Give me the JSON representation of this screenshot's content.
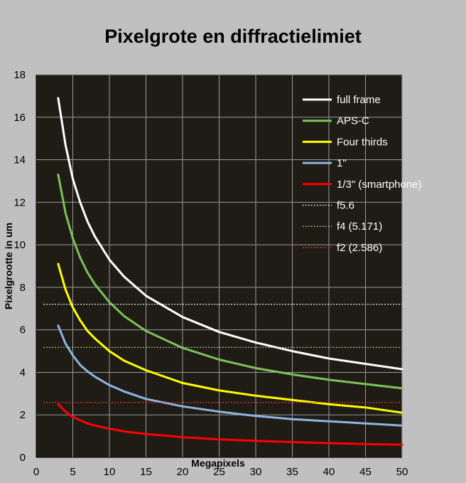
{
  "chart_data": {
    "type": "line",
    "title": "Pixelgrote en diffractielimiet",
    "xlabel": "Megapixels",
    "ylabel": "Pixelgrootte in um",
    "xlim": [
      0,
      50
    ],
    "ylim": [
      0,
      18
    ],
    "xticks": [
      0,
      5,
      10,
      15,
      20,
      25,
      30,
      35,
      40,
      45,
      50
    ],
    "yticks": [
      0,
      2,
      4,
      6,
      8,
      10,
      12,
      14,
      16,
      18
    ],
    "grid": true,
    "legend_position": "top-right",
    "plot_background": "#1f1c16",
    "grid_color": "#9a9a9a",
    "series": [
      {
        "name": "full frame",
        "color": "#ffffff",
        "style": "solid",
        "points": [
          [
            3,
            16.9
          ],
          [
            4,
            14.7
          ],
          [
            5,
            13.1
          ],
          [
            6,
            12.0
          ],
          [
            7,
            11.1
          ],
          [
            8,
            10.4
          ],
          [
            10,
            9.3
          ],
          [
            12,
            8.5
          ],
          [
            15,
            7.6
          ],
          [
            20,
            6.6
          ],
          [
            25,
            5.9
          ],
          [
            30,
            5.4
          ],
          [
            35,
            5.0
          ],
          [
            40,
            4.65
          ],
          [
            45,
            4.4
          ],
          [
            50,
            4.15
          ]
        ]
      },
      {
        "name": "APS-C",
        "color": "#7dc25b",
        "style": "solid",
        "points": [
          [
            3,
            13.3
          ],
          [
            4,
            11.5
          ],
          [
            5,
            10.3
          ],
          [
            6,
            9.4
          ],
          [
            7,
            8.7
          ],
          [
            8,
            8.15
          ],
          [
            10,
            7.3
          ],
          [
            12,
            6.65
          ],
          [
            15,
            5.95
          ],
          [
            20,
            5.15
          ],
          [
            25,
            4.6
          ],
          [
            30,
            4.2
          ],
          [
            35,
            3.9
          ],
          [
            40,
            3.65
          ],
          [
            45,
            3.45
          ],
          [
            50,
            3.25
          ]
        ]
      },
      {
        "name": "Four thirds",
        "color": "#ffff00",
        "style": "solid",
        "points": [
          [
            3,
            9.1
          ],
          [
            4,
            7.9
          ],
          [
            5,
            7.05
          ],
          [
            6,
            6.45
          ],
          [
            7,
            5.95
          ],
          [
            8,
            5.6
          ],
          [
            10,
            5.0
          ],
          [
            12,
            4.55
          ],
          [
            15,
            4.1
          ],
          [
            20,
            3.5
          ],
          [
            25,
            3.15
          ],
          [
            30,
            2.9
          ],
          [
            35,
            2.7
          ],
          [
            40,
            2.5
          ],
          [
            45,
            2.35
          ],
          [
            50,
            2.1
          ]
        ]
      },
      {
        "name": "1\"",
        "color": "#8fb4e3",
        "style": "solid",
        "points": [
          [
            3,
            6.2
          ],
          [
            4,
            5.35
          ],
          [
            5,
            4.8
          ],
          [
            6,
            4.35
          ],
          [
            7,
            4.05
          ],
          [
            8,
            3.8
          ],
          [
            10,
            3.4
          ],
          [
            12,
            3.1
          ],
          [
            15,
            2.75
          ],
          [
            20,
            2.4
          ],
          [
            25,
            2.15
          ],
          [
            30,
            1.95
          ],
          [
            35,
            1.8
          ],
          [
            40,
            1.7
          ],
          [
            45,
            1.6
          ],
          [
            50,
            1.5
          ]
        ]
      },
      {
        "name": "1/3\" (smartphone)",
        "color": "#ff0000",
        "style": "solid",
        "points": [
          [
            3,
            2.5
          ],
          [
            4,
            2.15
          ],
          [
            5,
            1.9
          ],
          [
            6,
            1.75
          ],
          [
            7,
            1.6
          ],
          [
            8,
            1.5
          ],
          [
            10,
            1.35
          ],
          [
            12,
            1.22
          ],
          [
            15,
            1.1
          ],
          [
            20,
            0.95
          ],
          [
            25,
            0.85
          ],
          [
            30,
            0.78
          ],
          [
            35,
            0.72
          ],
          [
            40,
            0.67
          ],
          [
            45,
            0.63
          ],
          [
            50,
            0.6
          ]
        ]
      },
      {
        "name": "f5.6",
        "color": "#ffffff",
        "style": "dotted",
        "points": [
          [
            1,
            7.2
          ],
          [
            50,
            7.2
          ]
        ]
      },
      {
        "name": "f4 (5.171)",
        "color": "#c3d69b",
        "style": "dotted",
        "points": [
          [
            1,
            5.171
          ],
          [
            50,
            5.171
          ]
        ]
      },
      {
        "name": "f2 (2.586)",
        "color": "#ff3333",
        "style": "dotted",
        "points": [
          [
            1,
            2.586
          ],
          [
            50,
            2.586
          ]
        ]
      }
    ]
  }
}
